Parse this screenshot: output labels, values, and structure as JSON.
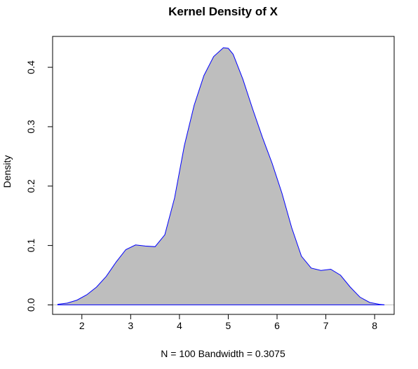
{
  "chart_data": {
    "type": "area",
    "title": "Kernel Density of X",
    "xlabel": "N = 100   Bandwidth = 0.3075",
    "ylabel": "Density",
    "xlim": [
      1.4,
      8.4
    ],
    "ylim": [
      -0.016,
      0.452
    ],
    "x_ticks": [
      2,
      3,
      4,
      5,
      6,
      7,
      8
    ],
    "x_tick_labels": [
      "2",
      "3",
      "4",
      "5",
      "6",
      "7",
      "8"
    ],
    "y_ticks": [
      0.0,
      0.1,
      0.2,
      0.3,
      0.4
    ],
    "y_tick_labels": [
      "0.0",
      "0.1",
      "0.2",
      "0.3",
      "0.4"
    ],
    "grid": false,
    "fill_color": "#bebebe",
    "line_color": "#0000ff",
    "baseline_color": "#bebebe",
    "x": [
      1.5,
      1.7,
      1.9,
      2.1,
      2.3,
      2.5,
      2.7,
      2.9,
      3.1,
      3.3,
      3.5,
      3.7,
      3.9,
      4.1,
      4.3,
      4.5,
      4.7,
      4.9,
      5.0,
      5.1,
      5.3,
      5.5,
      5.7,
      5.9,
      6.1,
      6.3,
      6.5,
      6.7,
      6.9,
      7.1,
      7.3,
      7.5,
      7.7,
      7.9,
      8.1,
      8.2
    ],
    "y": [
      0.001,
      0.003,
      0.008,
      0.017,
      0.03,
      0.048,
      0.072,
      0.093,
      0.101,
      0.099,
      0.098,
      0.118,
      0.18,
      0.268,
      0.336,
      0.386,
      0.418,
      0.433,
      0.432,
      0.422,
      0.38,
      0.33,
      0.282,
      0.238,
      0.188,
      0.13,
      0.082,
      0.062,
      0.058,
      0.06,
      0.05,
      0.03,
      0.013,
      0.004,
      0.001,
      0.0
    ]
  }
}
